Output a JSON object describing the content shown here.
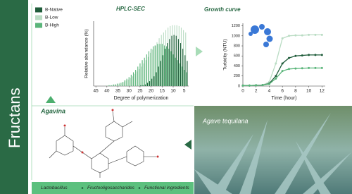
{
  "sidebar_title": "Fructans",
  "labels": {
    "molecule": "Agavina",
    "photo": "Agave tequilana"
  },
  "footer": [
    "Lactobacillus",
    "Fructooligosaccharides",
    "Functional ingredients"
  ],
  "chart_data": [
    {
      "type": "bar",
      "title": "HPLC-SEC",
      "x_label": "Degree of polymerization",
      "y_label": "Relative abundance (%)",
      "x": [
        44,
        43,
        42,
        41,
        40,
        39,
        38,
        37,
        36,
        35,
        34,
        33,
        32,
        31,
        30,
        29,
        28,
        27,
        26,
        25,
        24,
        23,
        22,
        21,
        20,
        19,
        18,
        17,
        16,
        15,
        14,
        13,
        12,
        11,
        10,
        9,
        8,
        7,
        6,
        5,
        4
      ],
      "xlim": [
        46,
        3
      ],
      "xticks": [
        45,
        40,
        35,
        30,
        25,
        20,
        15,
        10,
        5
      ],
      "ylim": [
        0,
        8
      ],
      "legend": "left",
      "series": [
        {
          "name": "B-Native",
          "color": "#1f5c3a",
          "values": [
            0,
            0,
            0,
            0,
            0,
            0,
            0,
            0,
            0,
            0,
            0,
            0,
            0,
            0,
            0,
            0,
            0,
            0,
            0,
            0.1,
            0.1,
            0.2,
            0.4,
            0.6,
            0.9,
            1.2,
            1.7,
            2.4,
            3.1,
            3.8,
            4.6,
            5.3,
            5.8,
            6.2,
            6.3,
            6.2,
            5.8,
            5.3,
            4.6,
            3.8,
            3.1
          ]
        },
        {
          "name": "B-Low",
          "color": "#b9dcc3",
          "values": [
            0,
            0,
            0,
            0,
            0.1,
            0.1,
            0.1,
            0.1,
            0.2,
            0.3,
            0.3,
            0.4,
            0.5,
            0.7,
            0.8,
            1.0,
            1.2,
            1.5,
            1.8,
            2.1,
            2.4,
            2.8,
            3.2,
            3.6,
            4.1,
            4.5,
            5.0,
            5.4,
            5.9,
            6.3,
            6.6,
            6.9,
            7.2,
            7.4,
            7.5,
            7.5,
            7.5,
            7.4,
            7.2,
            6.9,
            6.6
          ]
        },
        {
          "name": "B-High",
          "color": "#5ab57a",
          "values": [
            0,
            0,
            0,
            0,
            0,
            0.1,
            0.1,
            0.2,
            0.2,
            0.3,
            0.4,
            0.5,
            0.7,
            0.9,
            1.1,
            1.4,
            1.7,
            2.0,
            2.4,
            2.8,
            3.2,
            3.5,
            3.9,
            4.3,
            4.6,
            4.9,
            5.0,
            5.2,
            5.2,
            5.2,
            5.0,
            4.9,
            4.6,
            4.3,
            3.9,
            3.5,
            3.2,
            2.8,
            2.4,
            2.0,
            1.7
          ]
        }
      ]
    },
    {
      "type": "line",
      "title": "Growth curve",
      "x_label": "Time (hour)",
      "y_label": "Turbidity (NTU)",
      "x": [
        0,
        1,
        2,
        3,
        4,
        5,
        6,
        7,
        8,
        9,
        10,
        11,
        12
      ],
      "xlim": [
        0,
        12.5
      ],
      "xticks": [
        0,
        2,
        4,
        6,
        8,
        10,
        12
      ],
      "ylim": [
        0,
        1250
      ],
      "yticks": [
        0,
        200,
        400,
        600,
        800,
        1000,
        1200
      ],
      "series": [
        {
          "color": "#b9dcc3",
          "values": [
            10,
            10,
            15,
            20,
            80,
            450,
            950,
            1000,
            1010,
            1010,
            1020,
            1020,
            1020
          ]
        },
        {
          "color": "#1f5c3a",
          "values": [
            10,
            10,
            15,
            20,
            50,
            200,
            450,
            560,
            600,
            610,
            620,
            620,
            620
          ]
        },
        {
          "color": "#5ab57a",
          "values": [
            10,
            10,
            15,
            20,
            40,
            150,
            300,
            340,
            350,
            355,
            360,
            360,
            360
          ]
        }
      ]
    }
  ]
}
